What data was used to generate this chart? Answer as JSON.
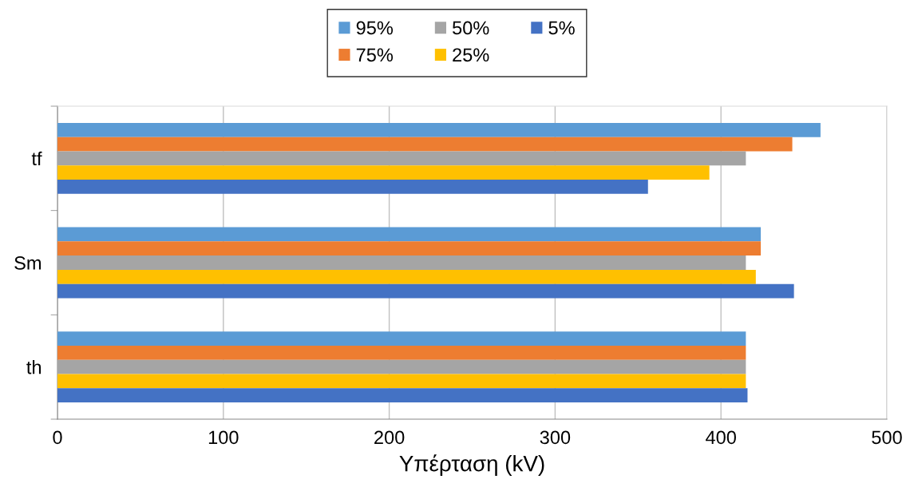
{
  "chart_data": {
    "type": "bar",
    "orientation": "horizontal",
    "xlabel": "Υπέρταση (kV)",
    "categories": [
      "tf",
      "Sm",
      "th"
    ],
    "series": [
      {
        "name": "95%",
        "color": "#5b9bd5",
        "values": [
          460,
          424,
          415
        ]
      },
      {
        "name": "75%",
        "color": "#ed7d31",
        "values": [
          443,
          424,
          415
        ]
      },
      {
        "name": "50%",
        "color": "#a5a5a5",
        "values": [
          415,
          415,
          415
        ]
      },
      {
        "name": "25%",
        "color": "#ffc000",
        "values": [
          393,
          421,
          415
        ]
      },
      {
        "name": "5%",
        "color": "#4472c4",
        "values": [
          356,
          444,
          416
        ]
      }
    ],
    "xlim": [
      0,
      500
    ],
    "xticks": [
      0,
      100,
      200,
      300,
      400,
      500
    ],
    "grid": "x",
    "legend": "top"
  }
}
